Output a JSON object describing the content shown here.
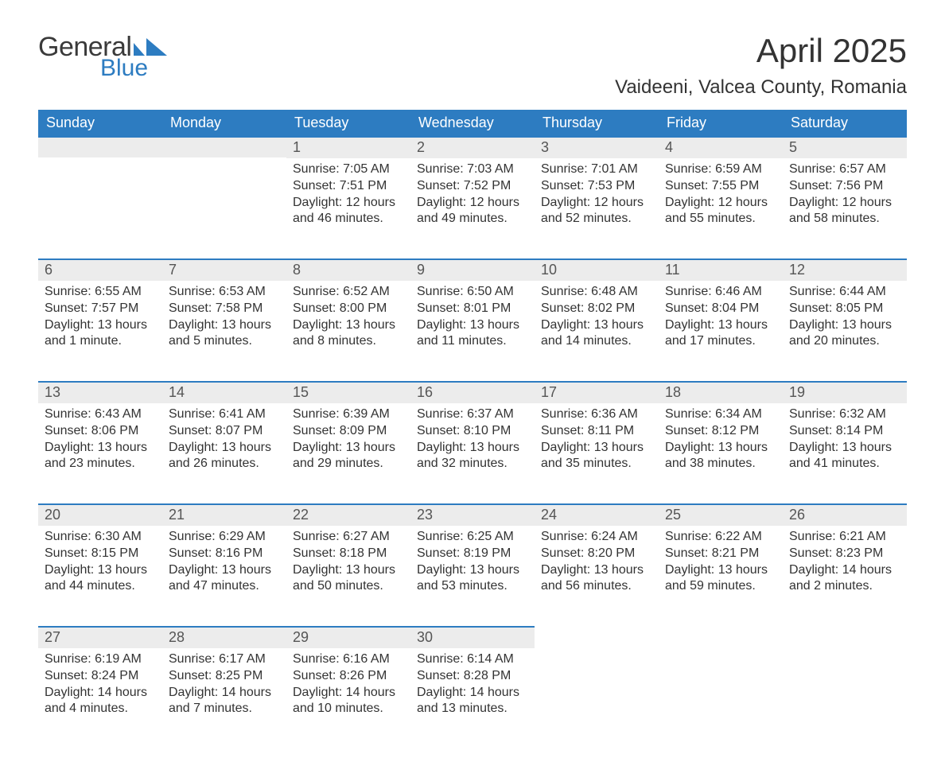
{
  "branding": {
    "logo_word1": "General",
    "logo_word2": "Blue",
    "logo_word1_color": "#3a3a3a",
    "logo_word2_color": "#2d7cc1",
    "flag_color": "#2d7cc1"
  },
  "title": "April 2025",
  "location": "Vaideeni, Valcea County, Romania",
  "colors": {
    "header_bg": "#2d7cc1",
    "header_text": "#ffffff",
    "daynum_bg": "#ececec",
    "daynum_border": "#2d7cc1",
    "body_text": "#333333",
    "page_bg": "#ffffff"
  },
  "font": {
    "family": "Arial",
    "title_size": 42,
    "location_size": 24,
    "header_size": 18,
    "daynum_size": 18,
    "body_size": 16
  },
  "day_headers": [
    "Sunday",
    "Monday",
    "Tuesday",
    "Wednesday",
    "Thursday",
    "Friday",
    "Saturday"
  ],
  "weeks": [
    [
      null,
      null,
      {
        "n": "1",
        "sunrise": "Sunrise: 7:05 AM",
        "sunset": "Sunset: 7:51 PM",
        "dl1": "Daylight: 12 hours",
        "dl2": "and 46 minutes."
      },
      {
        "n": "2",
        "sunrise": "Sunrise: 7:03 AM",
        "sunset": "Sunset: 7:52 PM",
        "dl1": "Daylight: 12 hours",
        "dl2": "and 49 minutes."
      },
      {
        "n": "3",
        "sunrise": "Sunrise: 7:01 AM",
        "sunset": "Sunset: 7:53 PM",
        "dl1": "Daylight: 12 hours",
        "dl2": "and 52 minutes."
      },
      {
        "n": "4",
        "sunrise": "Sunrise: 6:59 AM",
        "sunset": "Sunset: 7:55 PM",
        "dl1": "Daylight: 12 hours",
        "dl2": "and 55 minutes."
      },
      {
        "n": "5",
        "sunrise": "Sunrise: 6:57 AM",
        "sunset": "Sunset: 7:56 PM",
        "dl1": "Daylight: 12 hours",
        "dl2": "and 58 minutes."
      }
    ],
    [
      {
        "n": "6",
        "sunrise": "Sunrise: 6:55 AM",
        "sunset": "Sunset: 7:57 PM",
        "dl1": "Daylight: 13 hours",
        "dl2": "and 1 minute."
      },
      {
        "n": "7",
        "sunrise": "Sunrise: 6:53 AM",
        "sunset": "Sunset: 7:58 PM",
        "dl1": "Daylight: 13 hours",
        "dl2": "and 5 minutes."
      },
      {
        "n": "8",
        "sunrise": "Sunrise: 6:52 AM",
        "sunset": "Sunset: 8:00 PM",
        "dl1": "Daylight: 13 hours",
        "dl2": "and 8 minutes."
      },
      {
        "n": "9",
        "sunrise": "Sunrise: 6:50 AM",
        "sunset": "Sunset: 8:01 PM",
        "dl1": "Daylight: 13 hours",
        "dl2": "and 11 minutes."
      },
      {
        "n": "10",
        "sunrise": "Sunrise: 6:48 AM",
        "sunset": "Sunset: 8:02 PM",
        "dl1": "Daylight: 13 hours",
        "dl2": "and 14 minutes."
      },
      {
        "n": "11",
        "sunrise": "Sunrise: 6:46 AM",
        "sunset": "Sunset: 8:04 PM",
        "dl1": "Daylight: 13 hours",
        "dl2": "and 17 minutes."
      },
      {
        "n": "12",
        "sunrise": "Sunrise: 6:44 AM",
        "sunset": "Sunset: 8:05 PM",
        "dl1": "Daylight: 13 hours",
        "dl2": "and 20 minutes."
      }
    ],
    [
      {
        "n": "13",
        "sunrise": "Sunrise: 6:43 AM",
        "sunset": "Sunset: 8:06 PM",
        "dl1": "Daylight: 13 hours",
        "dl2": "and 23 minutes."
      },
      {
        "n": "14",
        "sunrise": "Sunrise: 6:41 AM",
        "sunset": "Sunset: 8:07 PM",
        "dl1": "Daylight: 13 hours",
        "dl2": "and 26 minutes."
      },
      {
        "n": "15",
        "sunrise": "Sunrise: 6:39 AM",
        "sunset": "Sunset: 8:09 PM",
        "dl1": "Daylight: 13 hours",
        "dl2": "and 29 minutes."
      },
      {
        "n": "16",
        "sunrise": "Sunrise: 6:37 AM",
        "sunset": "Sunset: 8:10 PM",
        "dl1": "Daylight: 13 hours",
        "dl2": "and 32 minutes."
      },
      {
        "n": "17",
        "sunrise": "Sunrise: 6:36 AM",
        "sunset": "Sunset: 8:11 PM",
        "dl1": "Daylight: 13 hours",
        "dl2": "and 35 minutes."
      },
      {
        "n": "18",
        "sunrise": "Sunrise: 6:34 AM",
        "sunset": "Sunset: 8:12 PM",
        "dl1": "Daylight: 13 hours",
        "dl2": "and 38 minutes."
      },
      {
        "n": "19",
        "sunrise": "Sunrise: 6:32 AM",
        "sunset": "Sunset: 8:14 PM",
        "dl1": "Daylight: 13 hours",
        "dl2": "and 41 minutes."
      }
    ],
    [
      {
        "n": "20",
        "sunrise": "Sunrise: 6:30 AM",
        "sunset": "Sunset: 8:15 PM",
        "dl1": "Daylight: 13 hours",
        "dl2": "and 44 minutes."
      },
      {
        "n": "21",
        "sunrise": "Sunrise: 6:29 AM",
        "sunset": "Sunset: 8:16 PM",
        "dl1": "Daylight: 13 hours",
        "dl2": "and 47 minutes."
      },
      {
        "n": "22",
        "sunrise": "Sunrise: 6:27 AM",
        "sunset": "Sunset: 8:18 PM",
        "dl1": "Daylight: 13 hours",
        "dl2": "and 50 minutes."
      },
      {
        "n": "23",
        "sunrise": "Sunrise: 6:25 AM",
        "sunset": "Sunset: 8:19 PM",
        "dl1": "Daylight: 13 hours",
        "dl2": "and 53 minutes."
      },
      {
        "n": "24",
        "sunrise": "Sunrise: 6:24 AM",
        "sunset": "Sunset: 8:20 PM",
        "dl1": "Daylight: 13 hours",
        "dl2": "and 56 minutes."
      },
      {
        "n": "25",
        "sunrise": "Sunrise: 6:22 AM",
        "sunset": "Sunset: 8:21 PM",
        "dl1": "Daylight: 13 hours",
        "dl2": "and 59 minutes."
      },
      {
        "n": "26",
        "sunrise": "Sunrise: 6:21 AM",
        "sunset": "Sunset: 8:23 PM",
        "dl1": "Daylight: 14 hours",
        "dl2": "and 2 minutes."
      }
    ],
    [
      {
        "n": "27",
        "sunrise": "Sunrise: 6:19 AM",
        "sunset": "Sunset: 8:24 PM",
        "dl1": "Daylight: 14 hours",
        "dl2": "and 4 minutes."
      },
      {
        "n": "28",
        "sunrise": "Sunrise: 6:17 AM",
        "sunset": "Sunset: 8:25 PM",
        "dl1": "Daylight: 14 hours",
        "dl2": "and 7 minutes."
      },
      {
        "n": "29",
        "sunrise": "Sunrise: 6:16 AM",
        "sunset": "Sunset: 8:26 PM",
        "dl1": "Daylight: 14 hours",
        "dl2": "and 10 minutes."
      },
      {
        "n": "30",
        "sunrise": "Sunrise: 6:14 AM",
        "sunset": "Sunset: 8:28 PM",
        "dl1": "Daylight: 14 hours",
        "dl2": "and 13 minutes."
      },
      null,
      null,
      null
    ]
  ]
}
